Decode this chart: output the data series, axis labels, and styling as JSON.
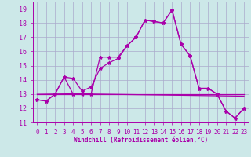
{
  "xlabel": "Windchill (Refroidissement éolien,°C)",
  "bg_color": "#cce8e8",
  "grid_color": "#aaaacc",
  "line_color": "#aa00aa",
  "xlim": [
    -0.5,
    23.5
  ],
  "ylim": [
    11,
    19.5
  ],
  "yticks": [
    11,
    12,
    13,
    14,
    15,
    16,
    17,
    18,
    19
  ],
  "xticks": [
    0,
    1,
    2,
    3,
    4,
    5,
    6,
    7,
    8,
    9,
    10,
    11,
    12,
    13,
    14,
    15,
    16,
    17,
    18,
    19,
    20,
    21,
    22,
    23
  ],
  "series1_x": [
    0,
    1,
    2,
    3,
    4,
    5,
    6,
    7,
    8,
    9,
    10,
    11,
    12,
    13,
    14,
    15,
    16,
    17,
    18,
    19,
    20,
    21,
    22,
    23
  ],
  "series1_y": [
    12.6,
    12.5,
    13.0,
    14.2,
    13.0,
    13.0,
    13.0,
    15.6,
    15.6,
    15.6,
    16.4,
    17.0,
    18.2,
    18.1,
    18.0,
    18.9,
    16.5,
    15.7,
    13.4,
    13.4,
    13.0,
    11.8,
    11.3,
    12.0
  ],
  "series2_x": [
    0,
    1,
    2,
    3,
    4,
    5,
    6,
    7,
    8,
    9,
    10,
    11,
    12,
    13,
    14,
    15,
    16,
    17,
    18,
    19,
    20,
    21,
    22,
    23
  ],
  "series2_y": [
    12.6,
    12.5,
    13.0,
    14.2,
    14.1,
    13.2,
    13.5,
    14.8,
    15.2,
    15.5,
    16.4,
    17.0,
    18.2,
    18.1,
    18.0,
    18.9,
    16.5,
    15.7,
    13.4,
    13.4,
    13.0,
    11.8,
    11.3,
    12.0
  ],
  "series3_y": [
    13.0,
    13.0
  ],
  "series4_y": [
    13.05,
    12.85
  ],
  "font_size_xlabel": 5.5,
  "font_size_ticks": 5.5,
  "marker": "*",
  "markersize": 3,
  "linewidth": 0.9
}
